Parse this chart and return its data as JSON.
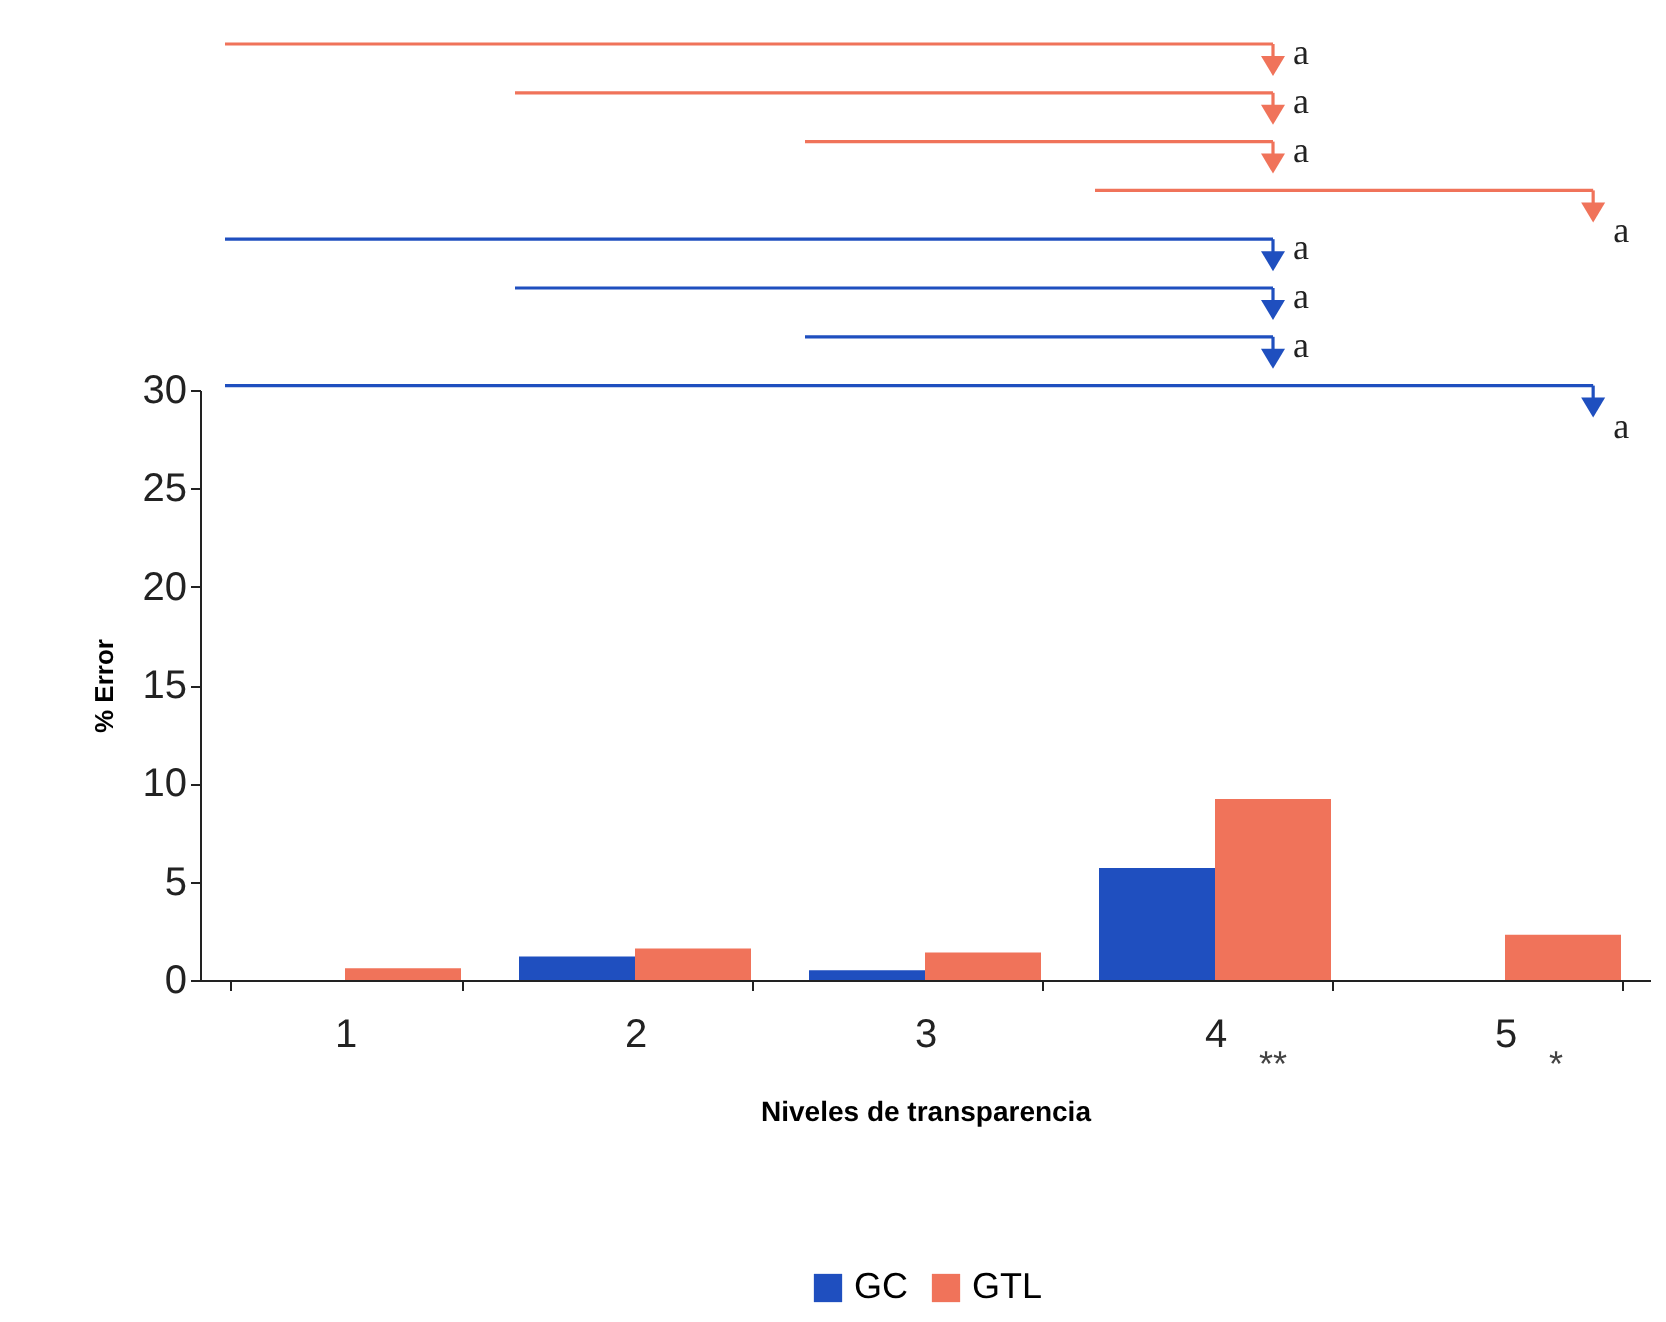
{
  "chart_data": {
    "type": "bar",
    "xlabel": "Niveles de transparencia",
    "ylabel": "% Error",
    "categories": [
      "1",
      "2",
      "3",
      "4",
      "5"
    ],
    "series": [
      {
        "name": "GC",
        "color": "#1f4fbf",
        "values": [
          0,
          1.2,
          0.5,
          5.7,
          0
        ]
      },
      {
        "name": "GTL",
        "color": "#f0735a",
        "values": [
          0.6,
          1.6,
          1.4,
          9.2,
          2.3
        ]
      }
    ],
    "ylim": [
      0,
      30
    ],
    "yticks": [
      0,
      5,
      10,
      15,
      20,
      25,
      30
    ],
    "grid": false,
    "legend": "bottom",
    "annotations": [
      "a",
      "a",
      "a",
      "a",
      "a",
      "a",
      "a",
      "a",
      "**",
      "*"
    ]
  }
}
